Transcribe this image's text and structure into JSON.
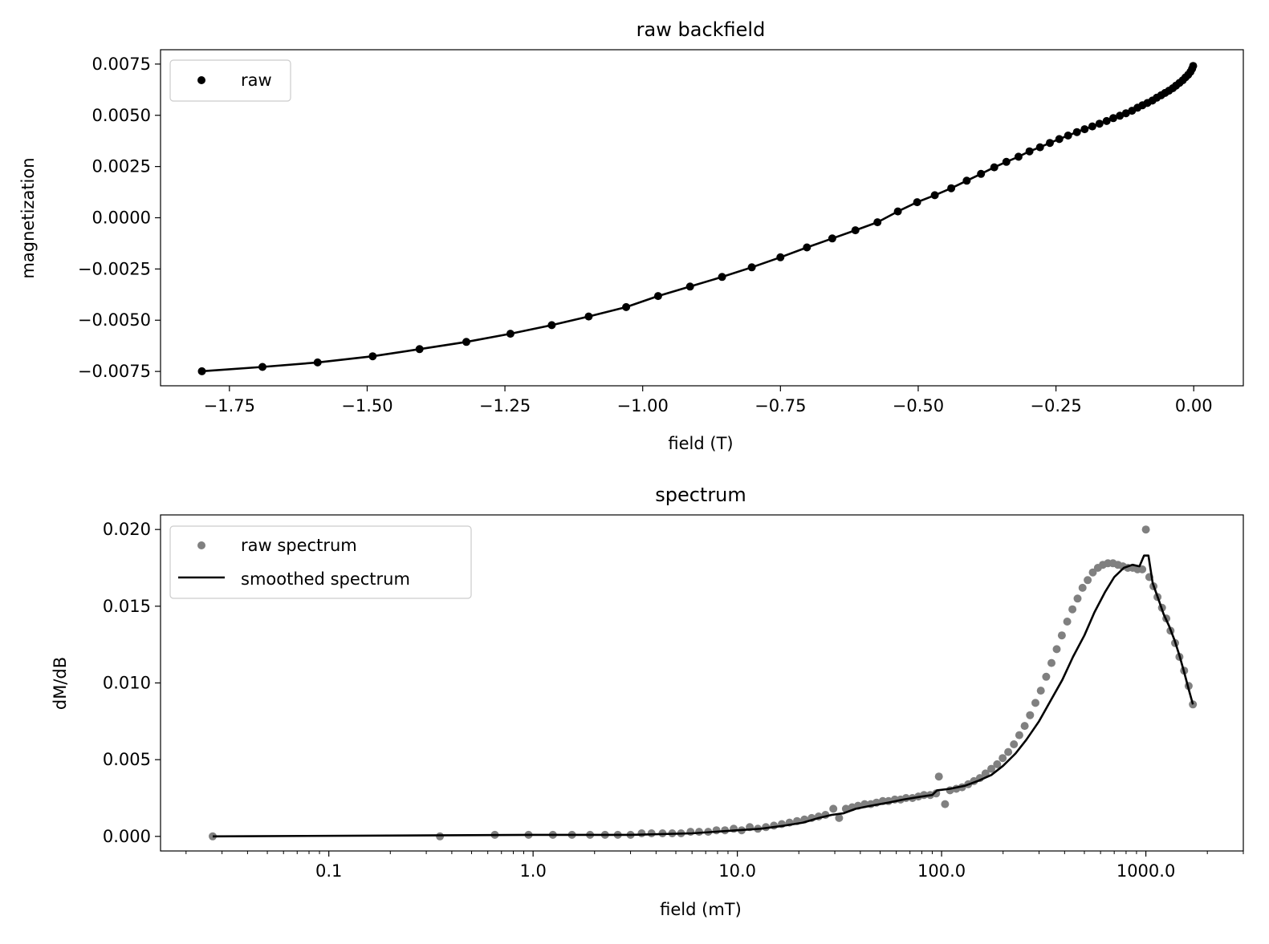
{
  "chart_data": [
    {
      "type": "scatter",
      "title": "raw backfield",
      "xlabel": "field (T)",
      "ylabel": "magnetization",
      "xlim": [
        -1.875,
        0.09
      ],
      "ylim": [
        -0.0082,
        0.0082
      ],
      "xticks": [
        -1.75,
        -1.5,
        -1.25,
        -1.0,
        -0.75,
        -0.5,
        -0.25,
        0.0
      ],
      "xtick_labels": [
        "−1.75",
        "−1.50",
        "−1.25",
        "−1.00",
        "−0.75",
        "−0.50",
        "−0.25",
        "0.00"
      ],
      "yticks": [
        0.0075,
        0.005,
        0.0025,
        0.0,
        -0.0025,
        -0.005,
        -0.0075
      ],
      "ytick_labels": [
        "0.0075",
        "0.0050",
        "0.0025",
        "0.0000",
        "−0.0025",
        "−0.0050",
        "−0.0075"
      ],
      "legend": {
        "position": "upper left",
        "entries": [
          {
            "label": "raw",
            "marker": "dot",
            "color": "#000000"
          }
        ]
      },
      "grid": false,
      "series": [
        {
          "name": "raw",
          "color": "#000000",
          "line": true,
          "x": [
            -1.8,
            -1.69,
            -1.59,
            -1.49,
            -1.405,
            -1.32,
            -1.24,
            -1.165,
            -1.098,
            -1.03,
            -0.972,
            -0.914,
            -0.856,
            -0.802,
            -0.75,
            -0.702,
            -0.656,
            -0.614,
            -0.574,
            -0.537,
            -0.502,
            -0.47,
            -0.44,
            -0.412,
            -0.386,
            -0.362,
            -0.34,
            -0.318,
            -0.298,
            -0.279,
            -0.261,
            -0.244,
            -0.228,
            -0.212,
            -0.198,
            -0.184,
            -0.171,
            -0.158,
            -0.146,
            -0.134,
            -0.123,
            -0.112,
            -0.102,
            -0.093,
            -0.084,
            -0.075,
            -0.067,
            -0.059,
            -0.052,
            -0.045,
            -0.038,
            -0.032,
            -0.026,
            -0.02,
            -0.015,
            -0.01,
            -0.006,
            -0.003,
            -0.001
          ],
          "y": [
            -0.00749,
            -0.00728,
            -0.00706,
            -0.00676,
            -0.00641,
            -0.00606,
            -0.00566,
            -0.00524,
            -0.00482,
            -0.00436,
            -0.00382,
            -0.00336,
            -0.00289,
            -0.00242,
            -0.00193,
            -0.00145,
            -0.00101,
            -0.00061,
            -0.00022,
            0.00031,
            0.00076,
            0.0011,
            0.00144,
            0.00181,
            0.00214,
            0.00246,
            0.00273,
            0.00298,
            0.00324,
            0.00344,
            0.00365,
            0.00384,
            0.00401,
            0.00418,
            0.00432,
            0.00446,
            0.00459,
            0.00472,
            0.00486,
            0.00498,
            0.0051,
            0.00522,
            0.00537,
            0.00549,
            0.0056,
            0.00572,
            0.00586,
            0.00598,
            0.00609,
            0.0062,
            0.00632,
            0.00645,
            0.00658,
            0.00671,
            0.00685,
            0.00698,
            0.00712,
            0.00727,
            0.00741
          ]
        }
      ]
    },
    {
      "type": "line",
      "title": "spectrum",
      "xlabel": "field (mT)",
      "ylabel": "dM/dB",
      "xscale": "log",
      "xlim": [
        0.015,
        3000
      ],
      "ylim": [
        -0.00095,
        0.02095
      ],
      "xticks": [
        0.1,
        1,
        10,
        100,
        1000
      ],
      "xtick_labels": [
        "0.1",
        "1.0",
        "10.0",
        "100.0",
        "1000.0"
      ],
      "yticks": [
        0.02,
        0.015,
        0.01,
        0.005,
        0.0
      ],
      "ytick_labels": [
        "0.020",
        "0.015",
        "0.010",
        "0.005",
        "0.000"
      ],
      "legend": {
        "position": "upper left",
        "entries": [
          {
            "label": "raw spectrum",
            "marker": "dot",
            "color": "#808080"
          },
          {
            "label": "smoothed spectrum",
            "marker": "line",
            "color": "#000000"
          }
        ]
      },
      "grid": false,
      "series": [
        {
          "name": "raw spectrum",
          "kind": "scatter",
          "color": "#808080",
          "x": [
            0.027,
            0.35,
            0.65,
            0.95,
            1.25,
            1.55,
            1.9,
            2.25,
            2.6,
            3.0,
            3.4,
            3.8,
            4.3,
            4.8,
            5.3,
            5.9,
            6.5,
            7.2,
            7.9,
            8.7,
            9.6,
            10.5,
            11.5,
            12.6,
            13.8,
            15.1,
            16.5,
            18.0,
            19.6,
            21.3,
            23.1,
            25.0,
            27.0,
            29.5,
            31.5,
            34.0,
            36.5,
            39.0,
            42.0,
            45.0,
            48.0,
            51.5,
            55.0,
            59.0,
            63.0,
            67.0,
            72.0,
            77.0,
            82.0,
            88.0,
            94.0,
            97.0,
            104.0,
            110.0,
            118.0,
            126.0,
            135.0,
            144.0,
            154.0,
            164.0,
            175.0,
            187.0,
            199.0,
            212.0,
            226.0,
            240.0,
            255.0,
            271.0,
            288.0,
            306.0,
            325.0,
            345.0,
            366.0,
            388.0,
            412.0,
            437.0,
            463.0,
            490.0,
            519.0,
            550.0,
            582.0,
            616.0,
            652.0,
            690.0,
            730.0,
            772.0,
            816.0,
            862.0,
            910.0,
            960.0,
            1000.0,
            1040.0,
            1090.0,
            1140.0,
            1200.0,
            1260.0,
            1320.0,
            1390.0,
            1460.0,
            1540.0,
            1620.0,
            1700.0
          ],
          "y": [
            0.0,
            0.0,
            0.0001,
            0.0001,
            0.0001,
            0.0001,
            0.0001,
            0.0001,
            0.0001,
            0.0001,
            0.0002,
            0.0002,
            0.0002,
            0.0002,
            0.0002,
            0.0003,
            0.0003,
            0.0003,
            0.0004,
            0.0004,
            0.0005,
            0.0004,
            0.0006,
            0.0005,
            0.0006,
            0.0007,
            0.0008,
            0.0009,
            0.001,
            0.0011,
            0.0012,
            0.0013,
            0.0014,
            0.0018,
            0.0012,
            0.0018,
            0.0019,
            0.002,
            0.0021,
            0.0021,
            0.0022,
            0.0023,
            0.0023,
            0.0024,
            0.0024,
            0.0025,
            0.0025,
            0.0026,
            0.0027,
            0.0027,
            0.0028,
            0.0039,
            0.0021,
            0.003,
            0.0031,
            0.0032,
            0.0034,
            0.0036,
            0.0038,
            0.0041,
            0.0044,
            0.0047,
            0.0051,
            0.0055,
            0.006,
            0.0066,
            0.0072,
            0.0079,
            0.0087,
            0.0095,
            0.0104,
            0.0113,
            0.0122,
            0.0131,
            0.014,
            0.0148,
            0.0155,
            0.0162,
            0.0167,
            0.0172,
            0.0175,
            0.0177,
            0.0178,
            0.0178,
            0.0177,
            0.0176,
            0.0175,
            0.0175,
            0.0174,
            0.0174,
            0.02,
            0.0169,
            0.0163,
            0.0156,
            0.0149,
            0.0142,
            0.0134,
            0.0126,
            0.0117,
            0.0108,
            0.0098,
            0.0086
          ]
        },
        {
          "name": "smoothed spectrum",
          "kind": "line",
          "color": "#000000",
          "x": [
            0.027,
            1.0,
            3.0,
            6.0,
            10.0,
            13.0,
            17.0,
            21.0,
            25.0,
            29.0,
            33.0,
            38.0,
            45.0,
            55.0,
            65.0,
            80.0,
            90.0,
            95.0,
            110.0,
            130.0,
            150.0,
            175.0,
            200.0,
            230.0,
            260.0,
            300.0,
            340.0,
            390.0,
            440.0,
            500.0,
            560.0,
            630.0,
            700.0,
            780.0,
            860.0,
            930.0,
            980.0,
            1030.0,
            1080.0,
            1150.0,
            1220.0,
            1300.0,
            1380.0,
            1460.0,
            1540.0,
            1620.0,
            1700.0
          ],
          "y": [
            0.0,
            0.0001,
            0.0001,
            0.0002,
            0.0004,
            0.0005,
            0.0007,
            0.0009,
            0.0012,
            0.0014,
            0.0015,
            0.0018,
            0.002,
            0.0022,
            0.0024,
            0.0026,
            0.0027,
            0.003,
            0.0031,
            0.0033,
            0.0036,
            0.004,
            0.0046,
            0.0054,
            0.0063,
            0.0075,
            0.0088,
            0.0102,
            0.0117,
            0.0131,
            0.0146,
            0.0159,
            0.0169,
            0.0175,
            0.0177,
            0.0176,
            0.0183,
            0.0183,
            0.0165,
            0.0155,
            0.0145,
            0.0137,
            0.0128,
            0.0118,
            0.0107,
            0.0096,
            0.0086
          ]
        }
      ]
    }
  ]
}
